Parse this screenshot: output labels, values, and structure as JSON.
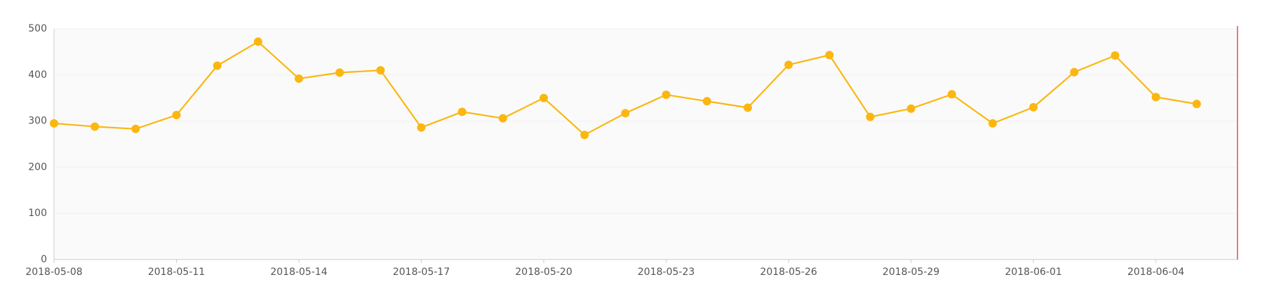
{
  "chart_data": {
    "type": "line",
    "x": [
      "2018-05-08",
      "2018-05-09",
      "2018-05-10",
      "2018-05-11",
      "2018-05-12",
      "2018-05-13",
      "2018-05-14",
      "2018-05-15",
      "2018-05-16",
      "2018-05-17",
      "2018-05-18",
      "2018-05-19",
      "2018-05-20",
      "2018-05-21",
      "2018-05-22",
      "2018-05-23",
      "2018-05-24",
      "2018-05-25",
      "2018-05-26",
      "2018-05-27",
      "2018-05-28",
      "2018-05-29",
      "2018-05-30",
      "2018-05-31",
      "2018-06-01",
      "2018-06-02",
      "2018-06-03",
      "2018-06-04",
      "2018-06-05"
    ],
    "values": [
      295,
      288,
      283,
      313,
      420,
      472,
      392,
      405,
      410,
      286,
      320,
      306,
      350,
      270,
      317,
      357,
      343,
      329,
      422,
      443,
      309,
      327,
      358,
      295,
      330,
      406,
      442,
      352,
      337
    ],
    "color": "#fbb710",
    "xlim": [
      "2018-05-08",
      "2018-06-06"
    ],
    "xticks": [
      "2018-05-08",
      "2018-05-11",
      "2018-05-14",
      "2018-05-17",
      "2018-05-20",
      "2018-05-23",
      "2018-05-26",
      "2018-05-29",
      "2018-06-01",
      "2018-06-04"
    ],
    "ylim": [
      0,
      500
    ],
    "yticks": [
      0,
      100,
      200,
      300,
      400,
      500
    ],
    "grid": true
  }
}
